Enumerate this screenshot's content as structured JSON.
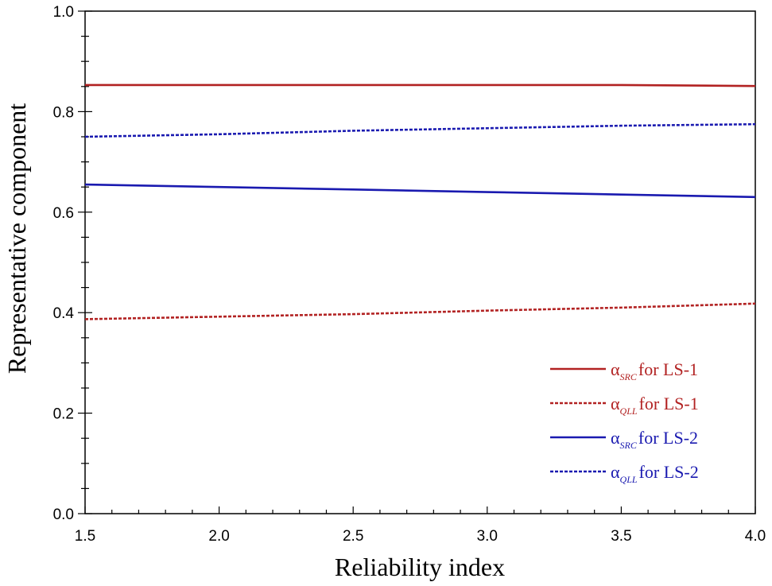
{
  "chart_data": {
    "type": "line",
    "xlabel": "Reliability index",
    "ylabel": "Representative component",
    "xlim": [
      1.5,
      4.0
    ],
    "ylim": [
      0.0,
      1.0
    ],
    "x_ticks": [
      "1.5",
      "2.0",
      "2.5",
      "3.0",
      "3.5",
      "4.0"
    ],
    "y_ticks": [
      "0.0",
      "0.2",
      "0.4",
      "0.6",
      "0.8",
      "1.0"
    ],
    "grid": false,
    "legend_position": "bottom-right",
    "x": [
      1.5,
      2.0,
      2.5,
      3.0,
      3.5,
      4.0
    ],
    "series": [
      {
        "name_symbol": "α",
        "name_sub": "SRC",
        "name_rest": "for LS-1",
        "color": "#b22222",
        "style": "solid",
        "values": [
          0.853,
          0.853,
          0.853,
          0.853,
          0.853,
          0.851
        ]
      },
      {
        "name_symbol": "α",
        "name_sub": "QLL",
        "name_rest": "for LS-1",
        "color": "#b22222",
        "style": "dashed",
        "values": [
          0.387,
          0.392,
          0.397,
          0.404,
          0.41,
          0.418
        ]
      },
      {
        "name_symbol": "α",
        "name_sub": "SRC",
        "name_rest": "for LS-2",
        "color": "#1a1ab0",
        "style": "solid",
        "values": [
          0.655,
          0.65,
          0.645,
          0.64,
          0.635,
          0.63
        ]
      },
      {
        "name_symbol": "α",
        "name_sub": "QLL",
        "name_rest": "for LS-2",
        "color": "#1a1ab0",
        "style": "dashed",
        "values": [
          0.75,
          0.755,
          0.762,
          0.767,
          0.772,
          0.775
        ]
      }
    ]
  }
}
